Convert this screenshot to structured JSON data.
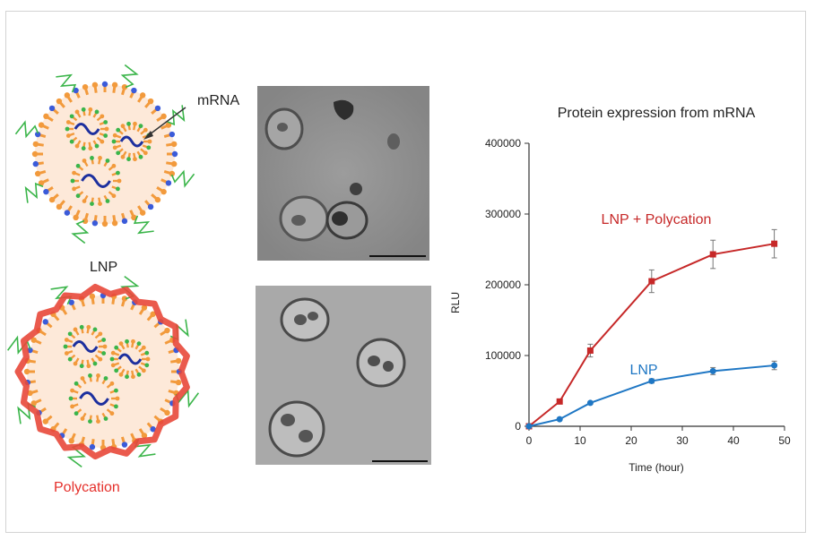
{
  "figure": {
    "label_mrna": "mRNA",
    "label_lnp": "LNP",
    "label_polycation": "Polycation",
    "colors": {
      "lipid_head": "#3b5bd9",
      "lipid_tail": "#f29a3c",
      "peg": "#3bb54a",
      "mrna": "#1c2f9e",
      "polycation": "#e8483a",
      "core": "#fde9d9"
    },
    "icons": [
      "lnp-illustration",
      "polycation-lnp-illustration",
      "tem-image-lnp",
      "tem-image-polycation-lnp",
      "arrow-icon"
    ]
  },
  "chart_data": {
    "type": "line",
    "title": "Protein expression from mRNA",
    "xlabel": "Time (hour)",
    "ylabel": "RLU",
    "xlim": [
      0,
      50
    ],
    "ylim": [
      0,
      400000
    ],
    "xticks": [
      0,
      10,
      20,
      30,
      40,
      50
    ],
    "yticks": [
      0,
      100000,
      200000,
      300000,
      400000
    ],
    "grid": false,
    "series": [
      {
        "name": "LNP + Polycation",
        "color": "#c62828",
        "marker": "square",
        "x": [
          0,
          6,
          12,
          24,
          36,
          48
        ],
        "y": [
          0,
          35000,
          107000,
          205000,
          243000,
          258000
        ],
        "err": [
          0,
          3000,
          9000,
          16000,
          20000,
          20000
        ]
      },
      {
        "name": "LNP",
        "color": "#1f77c4",
        "marker": "circle",
        "x": [
          0,
          6,
          12,
          24,
          36,
          48
        ],
        "y": [
          0,
          10000,
          33000,
          64000,
          78000,
          86000
        ],
        "err": [
          0,
          1000,
          2000,
          3000,
          5000,
          6000
        ]
      }
    ]
  }
}
